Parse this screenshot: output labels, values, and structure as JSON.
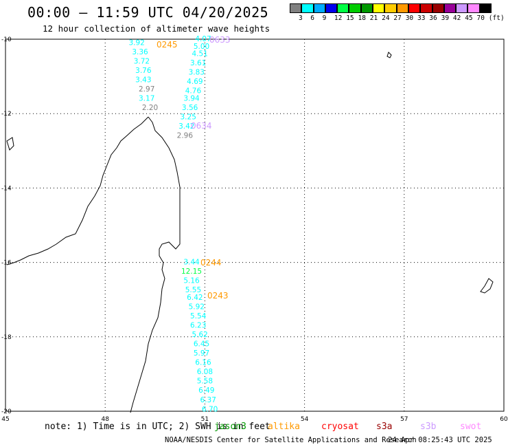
{
  "title": "00:00 – 11:59 UTC 04/20/2025",
  "subtitle": "12 hour collection of altimeter wave heights",
  "legend": {
    "colors": [
      "#808080",
      "#00ffff",
      "#00aaff",
      "#0000ee",
      "#00ff44",
      "#00cc00",
      "#009900",
      "#ffff00",
      "#ffcc00",
      "#ff9900",
      "#ff0000",
      "#cc0000",
      "#990000",
      "#990099",
      "#cc99ff",
      "#ff88ff",
      "#000000"
    ],
    "labels": [
      "3",
      "6",
      "9",
      "12",
      "15",
      "18",
      "21",
      "24",
      "27",
      "30",
      "33",
      "36",
      "39",
      "42",
      "45",
      "70",
      "(ft)"
    ]
  },
  "axes": {
    "lon_ticks": [
      "45",
      "48",
      "51",
      "54",
      "57",
      "60"
    ],
    "lat_ticks": [
      "-10",
      "-12",
      "-14",
      "-16",
      "-18",
      "-20"
    ]
  },
  "tracks": [
    {
      "label": "0633",
      "label_color": "#cc99ff",
      "readings": [
        {
          "lat": -10.0,
          "lon": 50.95,
          "value": "4.07",
          "color": "#00ffff"
        },
        {
          "lat": -10.2,
          "lon": 50.9,
          "value": "5.00",
          "color": "#00ffff"
        },
        {
          "lat": -10.4,
          "lon": 50.85,
          "value": "4.51",
          "color": "#00ffff"
        },
        {
          "lat": -10.65,
          "lon": 50.8,
          "value": "3.61",
          "color": "#00ffff"
        },
        {
          "lat": -10.9,
          "lon": 50.75,
          "value": "3.83",
          "color": "#00ffff"
        },
        {
          "lat": -11.15,
          "lon": 50.7,
          "value": "4.69",
          "color": "#00ffff"
        },
        {
          "lat": -11.4,
          "lon": 50.65,
          "value": "4.76",
          "color": "#00ffff"
        },
        {
          "lat": -11.6,
          "lon": 50.6,
          "value": "3.94",
          "color": "#00ffff"
        },
        {
          "lat": -11.85,
          "lon": 50.55,
          "value": "3.56",
          "color": "#00ffff"
        },
        {
          "lat": -12.1,
          "lon": 50.5,
          "value": "3.25",
          "color": "#00ffff"
        },
        {
          "lat": -12.35,
          "lon": 50.45,
          "value": "3.42",
          "color": "#00ffff"
        },
        {
          "lat": -12.6,
          "lon": 50.4,
          "value": "2.96",
          "color": "#808080"
        }
      ]
    },
    {
      "label": "0634",
      "label_color": "#cc99ff",
      "readings": []
    },
    {
      "label": "0245",
      "label_color": "#ff9900",
      "readings": [
        {
          "lat": -10.1,
          "lon": 48.95,
          "value": "3.92",
          "color": "#00ffff"
        },
        {
          "lat": -10.35,
          "lon": 49.05,
          "value": "3.36",
          "color": "#00ffff"
        },
        {
          "lat": -10.6,
          "lon": 49.1,
          "value": "3.72",
          "color": "#00ffff"
        },
        {
          "lat": -10.85,
          "lon": 49.15,
          "value": "3.76",
          "color": "#00ffff"
        },
        {
          "lat": -11.1,
          "lon": 49.15,
          "value": "3.43",
          "color": "#00ffff"
        },
        {
          "lat": -11.35,
          "lon": 49.25,
          "value": "2.97",
          "color": "#808080"
        },
        {
          "lat": -11.6,
          "lon": 49.25,
          "value": "3.17",
          "color": "#00ffff"
        },
        {
          "lat": -11.85,
          "lon": 49.35,
          "value": "2.20",
          "color": "#808080"
        }
      ]
    },
    {
      "label": "0244",
      "label_color": "#ff9900",
      "readings": [
        {
          "lat": -16.0,
          "lon": 50.6,
          "value": "3.44",
          "color": "#00ffff"
        },
        {
          "lat": -16.25,
          "lon": 50.6,
          "value": "12.15",
          "color": "#00ff44"
        },
        {
          "lat": -16.5,
          "lon": 50.6,
          "value": "5.16",
          "color": "#00ffff"
        },
        {
          "lat": -16.75,
          "lon": 50.65,
          "value": "5.55",
          "color": "#00ffff"
        }
      ]
    },
    {
      "label": "0243",
      "label_color": "#ff9900",
      "readings": [
        {
          "lat": -16.95,
          "lon": 50.7,
          "value": "6.42",
          "color": "#00ffff"
        },
        {
          "lat": -17.2,
          "lon": 50.75,
          "value": "5.92",
          "color": "#00ffff"
        },
        {
          "lat": -17.45,
          "lon": 50.8,
          "value": "5.54",
          "color": "#00ffff"
        },
        {
          "lat": -17.7,
          "lon": 50.8,
          "value": "6.23",
          "color": "#00ffff"
        },
        {
          "lat": -17.95,
          "lon": 50.85,
          "value": "5.62",
          "color": "#00ffff"
        },
        {
          "lat": -18.2,
          "lon": 50.9,
          "value": "6.45",
          "color": "#00ffff"
        },
        {
          "lat": -18.45,
          "lon": 50.9,
          "value": "5.97",
          "color": "#00ffff"
        },
        {
          "lat": -18.7,
          "lon": 50.95,
          "value": "6.16",
          "color": "#00ffff"
        },
        {
          "lat": -18.95,
          "lon": 51.0,
          "value": "6.08",
          "color": "#00ffff"
        },
        {
          "lat": -19.2,
          "lon": 51.0,
          "value": "5.58",
          "color": "#00ffff"
        },
        {
          "lat": -19.45,
          "lon": 51.05,
          "value": "6.49",
          "color": "#00ffff"
        },
        {
          "lat": -19.7,
          "lon": 51.1,
          "value": "6.37",
          "color": "#00ffff"
        },
        {
          "lat": -19.95,
          "lon": 51.15,
          "value": "6.70",
          "color": "#00ffff"
        }
      ]
    }
  ],
  "footer": {
    "note": "note:  1) Time is in UTC; 2) SWH is in feet",
    "satellites": [
      {
        "name": "jason3",
        "color": "#009900"
      },
      {
        "name": "altika",
        "color": "#ff9900"
      },
      {
        "name": "cryosat",
        "color": "#ff0000"
      },
      {
        "name": "s3a",
        "color": "#990000"
      },
      {
        "name": "s3b",
        "color": "#cc99ff"
      },
      {
        "name": "swot",
        "color": "#ff88ff"
      }
    ],
    "credit": "NOAA/NESDIS Center for Satellite Applications and Research",
    "timestamp": "24 Apr 08:25:43 UTC 2025"
  }
}
